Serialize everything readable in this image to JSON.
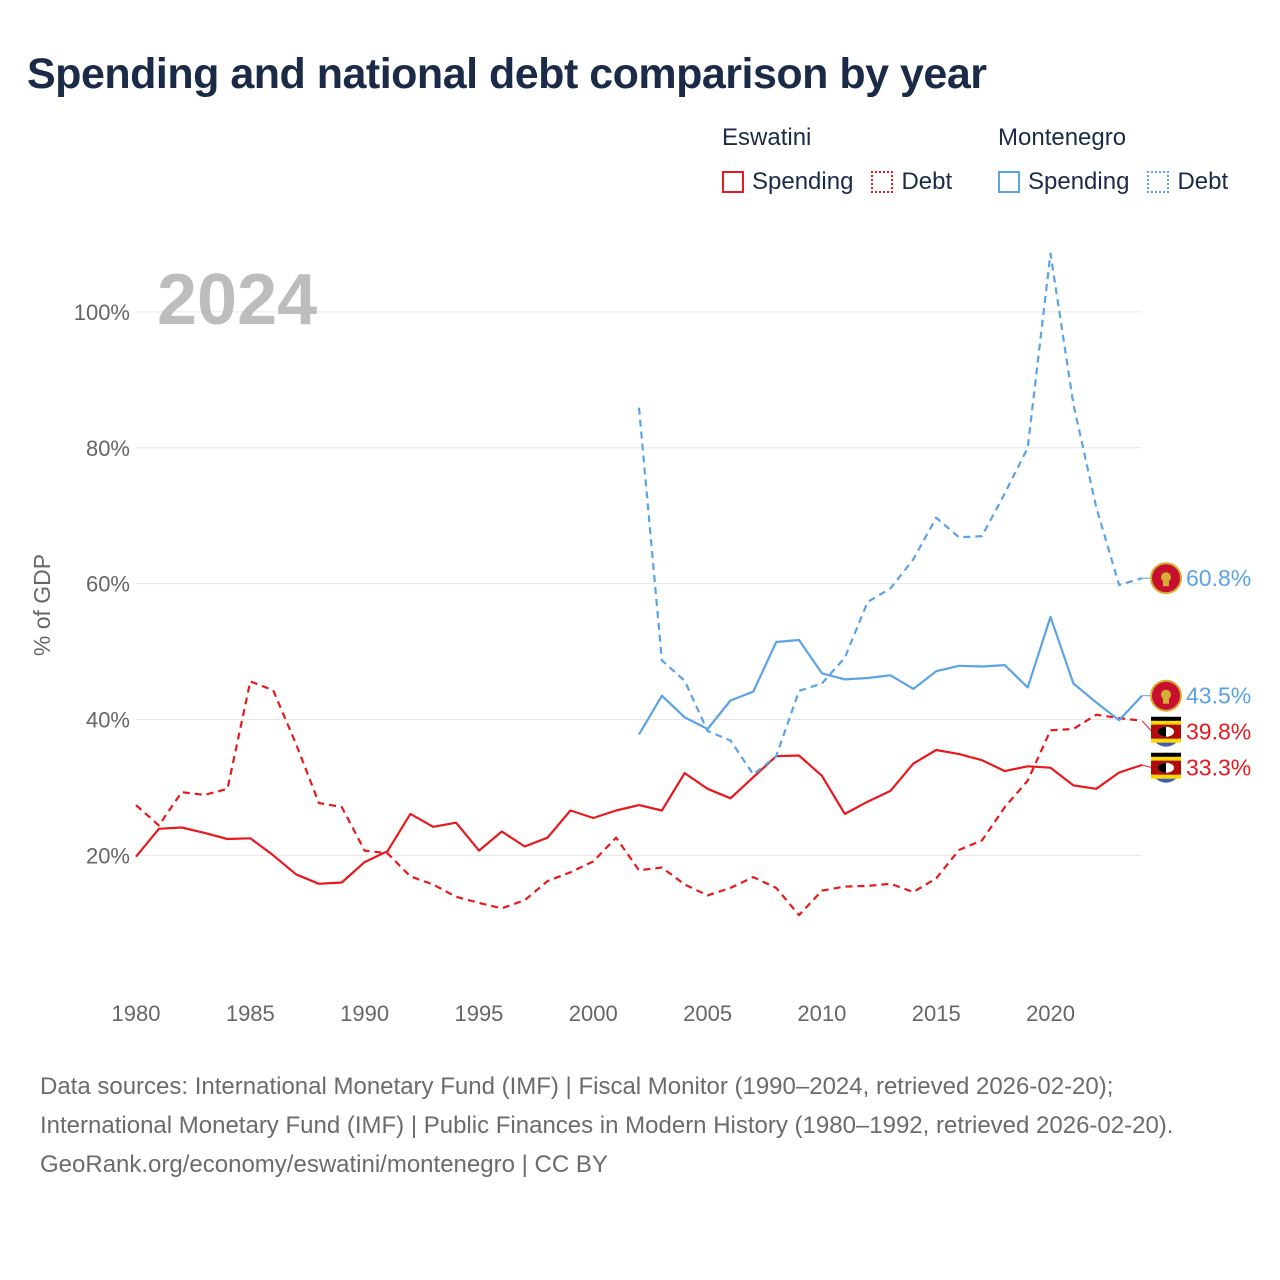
{
  "title": "Spending and national debt comparison by year",
  "legend": {
    "groups": [
      {
        "country": "Eswatini",
        "color": "#e8191c",
        "items": [
          {
            "label": "Spending",
            "style": "solid"
          },
          {
            "label": "Debt",
            "style": "dotted"
          }
        ]
      },
      {
        "country": "Montenegro",
        "color": "#5ba3e6",
        "items": [
          {
            "label": "Spending",
            "style": "solid"
          },
          {
            "label": "Debt",
            "style": "dotted"
          }
        ]
      }
    ]
  },
  "chart_data": {
    "type": "line",
    "year_label": "2024",
    "ylabel": "% of GDP",
    "xlim": [
      1980,
      2024
    ],
    "ylim": [
      4,
      110
    ],
    "x_ticks": [
      1980,
      1985,
      1990,
      1995,
      2000,
      2005,
      2010,
      2015,
      2020
    ],
    "y_ticks": [
      20,
      40,
      60,
      80,
      100
    ],
    "y_tick_labels": [
      "20%",
      "40%",
      "60%",
      "80%",
      "100%"
    ],
    "series": [
      {
        "name": "Eswatini Spending",
        "country": "Eswatini",
        "color": "#e8191c",
        "dash": "solid",
        "end_label": "33.3%",
        "points": [
          [
            1980,
            19.8
          ],
          [
            1981,
            23.9
          ],
          [
            1982,
            24.1
          ],
          [
            1983,
            23.3
          ],
          [
            1984,
            22.4
          ],
          [
            1985,
            22.5
          ],
          [
            1986,
            20.0
          ],
          [
            1987,
            17.2
          ],
          [
            1988,
            15.8
          ],
          [
            1989,
            16.0
          ],
          [
            1990,
            19.0
          ],
          [
            1991,
            20.6
          ],
          [
            1992,
            26.1
          ],
          [
            1993,
            24.2
          ],
          [
            1994,
            24.8
          ],
          [
            1995,
            20.7
          ],
          [
            1996,
            23.5
          ],
          [
            1997,
            21.3
          ],
          [
            1998,
            22.6
          ],
          [
            1999,
            26.6
          ],
          [
            2000,
            25.5
          ],
          [
            2001,
            26.6
          ],
          [
            2002,
            27.4
          ],
          [
            2003,
            26.6
          ],
          [
            2004,
            32.1
          ],
          [
            2005,
            29.8
          ],
          [
            2006,
            28.4
          ],
          [
            2007,
            31.5
          ],
          [
            2008,
            34.6
          ],
          [
            2009,
            34.7
          ],
          [
            2010,
            31.7
          ],
          [
            2011,
            26.1
          ],
          [
            2012,
            27.9
          ],
          [
            2013,
            29.5
          ],
          [
            2014,
            33.5
          ],
          [
            2015,
            35.5
          ],
          [
            2016,
            34.9
          ],
          [
            2017,
            34.0
          ],
          [
            2018,
            32.4
          ],
          [
            2019,
            33.1
          ],
          [
            2020,
            32.9
          ],
          [
            2021,
            30.3
          ],
          [
            2022,
            29.8
          ],
          [
            2023,
            32.2
          ],
          [
            2024,
            33.3
          ]
        ]
      },
      {
        "name": "Eswatini Debt",
        "country": "Eswatini",
        "color": "#e8191c",
        "dash": "dashed",
        "end_label": "39.8%",
        "points": [
          [
            1980,
            27.4
          ],
          [
            1981,
            24.4
          ],
          [
            1982,
            29.3
          ],
          [
            1983,
            28.9
          ],
          [
            1984,
            29.8
          ],
          [
            1985,
            45.6
          ],
          [
            1986,
            44.3
          ],
          [
            1987,
            36.4
          ],
          [
            1988,
            27.7
          ],
          [
            1989,
            27.1
          ],
          [
            1990,
            20.7
          ],
          [
            1991,
            20.3
          ],
          [
            1992,
            16.9
          ],
          [
            1993,
            15.7
          ],
          [
            1994,
            13.9
          ],
          [
            1995,
            13.0
          ],
          [
            1996,
            12.2
          ],
          [
            1997,
            13.4
          ],
          [
            1998,
            16.2
          ],
          [
            1999,
            17.5
          ],
          [
            2000,
            19.1
          ],
          [
            2001,
            22.6
          ],
          [
            2002,
            17.8
          ],
          [
            2003,
            18.2
          ],
          [
            2004,
            15.7
          ],
          [
            2005,
            14.1
          ],
          [
            2006,
            15.2
          ],
          [
            2007,
            16.8
          ],
          [
            2008,
            15.2
          ],
          [
            2009,
            11.2
          ],
          [
            2010,
            14.8
          ],
          [
            2011,
            15.4
          ],
          [
            2012,
            15.5
          ],
          [
            2013,
            15.8
          ],
          [
            2014,
            14.6
          ],
          [
            2015,
            16.6
          ],
          [
            2016,
            20.8
          ],
          [
            2017,
            22.2
          ],
          [
            2018,
            27.1
          ],
          [
            2019,
            31.0
          ],
          [
            2020,
            38.4
          ],
          [
            2021,
            38.6
          ],
          [
            2022,
            40.7
          ],
          [
            2023,
            40.2
          ],
          [
            2024,
            39.8
          ]
        ]
      },
      {
        "name": "Montenegro Spending",
        "country": "Montenegro",
        "color": "#5ba3e6",
        "dash": "solid",
        "end_label": "43.5%",
        "points": [
          [
            2002,
            37.8
          ],
          [
            2003,
            43.5
          ],
          [
            2004,
            40.3
          ],
          [
            2005,
            38.6
          ],
          [
            2006,
            42.8
          ],
          [
            2007,
            44.1
          ],
          [
            2008,
            51.4
          ],
          [
            2009,
            51.7
          ],
          [
            2010,
            46.8
          ],
          [
            2011,
            45.9
          ],
          [
            2012,
            46.1
          ],
          [
            2013,
            46.5
          ],
          [
            2014,
            44.5
          ],
          [
            2015,
            47.1
          ],
          [
            2016,
            47.9
          ],
          [
            2017,
            47.8
          ],
          [
            2018,
            48.0
          ],
          [
            2019,
            44.7
          ],
          [
            2020,
            55.1
          ],
          [
            2021,
            45.3
          ],
          [
            2022,
            42.5
          ],
          [
            2023,
            39.9
          ],
          [
            2024,
            43.5
          ]
        ]
      },
      {
        "name": "Montenegro Debt",
        "country": "Montenegro",
        "color": "#5ba3e6",
        "dash": "dashed",
        "end_label": "60.8%",
        "points": [
          [
            2002,
            85.9
          ],
          [
            2003,
            48.7
          ],
          [
            2004,
            45.7
          ],
          [
            2005,
            38.3
          ],
          [
            2006,
            36.9
          ],
          [
            2007,
            31.9
          ],
          [
            2008,
            34.6
          ],
          [
            2009,
            44.2
          ],
          [
            2010,
            45.3
          ],
          [
            2011,
            49.1
          ],
          [
            2012,
            57.3
          ],
          [
            2013,
            59.3
          ],
          [
            2014,
            63.6
          ],
          [
            2015,
            69.7
          ],
          [
            2016,
            66.8
          ],
          [
            2017,
            67.0
          ],
          [
            2018,
            73.3
          ],
          [
            2019,
            80.0
          ],
          [
            2020,
            108.6
          ],
          [
            2021,
            86.4
          ],
          [
            2022,
            71.2
          ],
          [
            2023,
            59.8
          ],
          [
            2024,
            60.8
          ]
        ]
      }
    ],
    "end_markers": [
      {
        "series": "Montenegro Debt",
        "flag": "montenegro-flag-icon"
      },
      {
        "series": "Montenegro Spending",
        "flag": "montenegro-flag-icon"
      },
      {
        "series": "Eswatini Debt",
        "flag": "eswatini-flag-icon"
      },
      {
        "series": "Eswatini Spending",
        "flag": "eswatini-flag-icon"
      }
    ]
  },
  "footer": {
    "sources": "Data sources: International Monetary Fund (IMF) | Fiscal Monitor (1990–2024, retrieved 2026-02-20); International Monetary Fund (IMF) | Public Finances in Modern History (1980–1992, retrieved 2026-02-20).",
    "credit": "GeoRank.org/economy/eswatini/montenegro | CC BY"
  }
}
